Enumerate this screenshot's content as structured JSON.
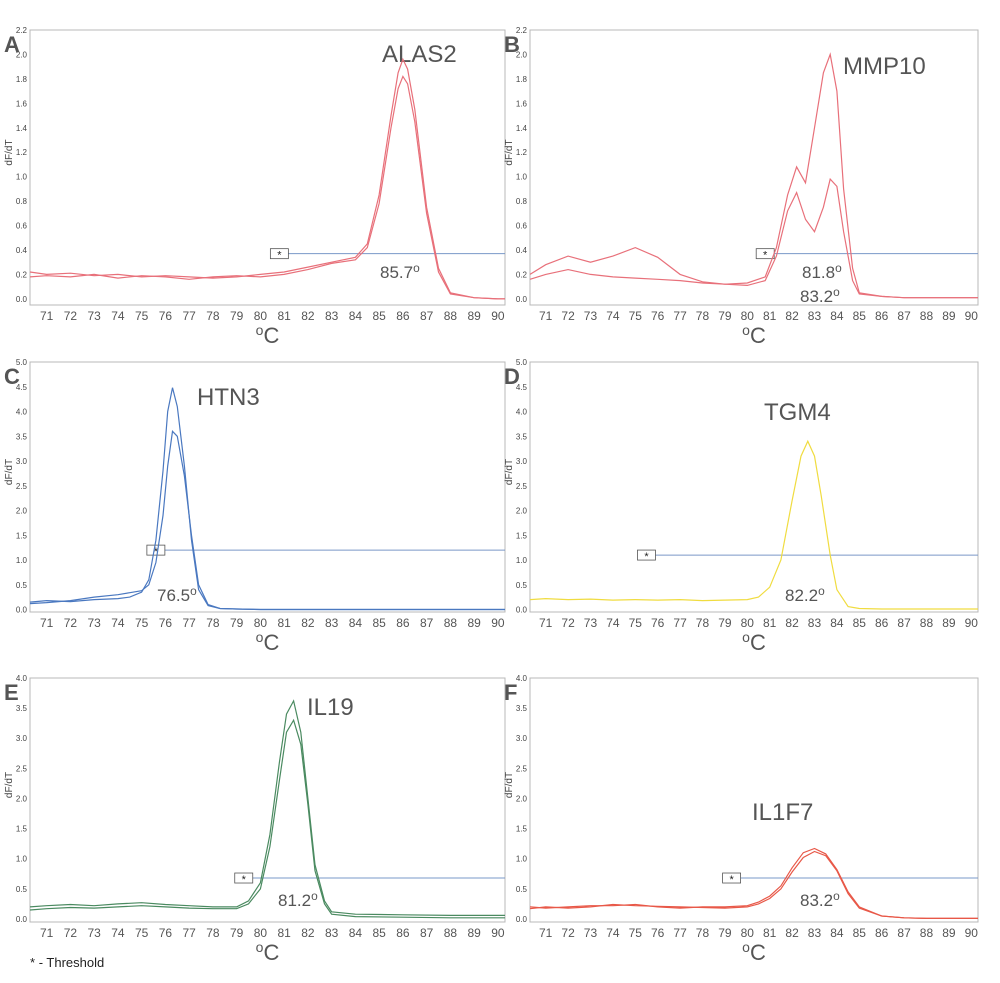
{
  "threshold_marker": "*",
  "footnote": "- Threshold",
  "chart_data": [
    {
      "type": "line",
      "panel_letter": "A",
      "gene": "ALAS2",
      "xlabel": "oC",
      "ylabel": "dF/dT",
      "xlim": [
        70.3,
        90.3
      ],
      "ylim": [
        -0.05,
        2.2
      ],
      "xticks": [
        71,
        72,
        73,
        74,
        75,
        76,
        77,
        78,
        79,
        80,
        81,
        82,
        83,
        84,
        85,
        86,
        87,
        88,
        89,
        90
      ],
      "yticks": [
        "0.0",
        "0.2",
        "0.4",
        "0.6",
        "0.8",
        "1.0",
        "1.2",
        "1.4",
        "1.6",
        "1.8",
        "2.0",
        "2.2"
      ],
      "color": "#e8707a",
      "threshold": 0.37,
      "marker_x": 80.8,
      "annotations": [
        "85.7o"
      ],
      "series": [
        {
          "x": [
            70.3,
            71,
            72,
            73,
            74,
            75,
            76,
            77,
            78,
            79,
            80,
            81,
            82,
            83,
            84,
            84.5,
            85,
            85.5,
            85.8,
            86,
            86.2,
            86.5,
            87,
            87.5,
            88,
            89,
            90,
            90.3
          ],
          "y": [
            0.22,
            0.2,
            0.21,
            0.19,
            0.2,
            0.18,
            0.19,
            0.18,
            0.17,
            0.18,
            0.2,
            0.22,
            0.26,
            0.3,
            0.34,
            0.45,
            0.85,
            1.5,
            1.85,
            1.96,
            1.88,
            1.55,
            0.75,
            0.25,
            0.05,
            0.01,
            0.0,
            0.0
          ]
        },
        {
          "x": [
            70.3,
            71,
            72,
            73,
            74,
            75,
            76,
            77,
            78,
            79,
            80,
            81,
            82,
            83,
            84,
            84.5,
            85,
            85.5,
            85.8,
            86,
            86.2,
            86.5,
            87,
            87.5,
            88,
            89,
            90,
            90.3
          ],
          "y": [
            0.18,
            0.19,
            0.18,
            0.2,
            0.17,
            0.19,
            0.18,
            0.16,
            0.18,
            0.19,
            0.18,
            0.2,
            0.24,
            0.29,
            0.32,
            0.42,
            0.78,
            1.4,
            1.72,
            1.82,
            1.76,
            1.45,
            0.7,
            0.22,
            0.04,
            0.01,
            0.0,
            0.0
          ]
        }
      ]
    },
    {
      "type": "line",
      "panel_letter": "B",
      "gene": "MMP10",
      "xlabel": "oC",
      "ylabel": "dF/dT",
      "xlim": [
        70.3,
        90.3
      ],
      "ylim": [
        -0.05,
        2.2
      ],
      "xticks": [
        71,
        72,
        73,
        74,
        75,
        76,
        77,
        78,
        79,
        80,
        81,
        82,
        83,
        84,
        85,
        86,
        87,
        88,
        89,
        90
      ],
      "yticks": [
        "0.0",
        "0.2",
        "0.4",
        "0.6",
        "0.8",
        "1.0",
        "1.2",
        "1.4",
        "1.6",
        "1.8",
        "2.0",
        "2.2"
      ],
      "color": "#e8707a",
      "threshold": 0.37,
      "marker_x": 80.8,
      "annotations": [
        "81.8o",
        "83.2o"
      ],
      "series": [
        {
          "x": [
            70.3,
            71,
            72,
            73,
            74,
            75,
            76,
            77,
            78,
            79,
            80,
            80.8,
            81.3,
            81.8,
            82.2,
            82.6,
            83,
            83.4,
            83.7,
            84,
            84.3,
            84.7,
            85,
            86,
            87,
            88,
            89,
            90,
            90.3
          ],
          "y": [
            0.2,
            0.28,
            0.35,
            0.3,
            0.35,
            0.42,
            0.34,
            0.2,
            0.14,
            0.12,
            0.13,
            0.18,
            0.42,
            0.85,
            1.08,
            0.95,
            1.4,
            1.85,
            2.0,
            1.7,
            0.9,
            0.25,
            0.05,
            0.02,
            0.01,
            0.01,
            0.01,
            0.01,
            0.01
          ]
        },
        {
          "x": [
            70.3,
            71,
            72,
            73,
            74,
            75,
            76,
            77,
            78,
            79,
            80,
            80.8,
            81.3,
            81.8,
            82.2,
            82.6,
            83,
            83.4,
            83.7,
            84,
            84.3,
            84.7,
            85,
            86,
            87,
            88,
            89,
            90,
            90.3
          ],
          "y": [
            0.16,
            0.2,
            0.24,
            0.2,
            0.18,
            0.17,
            0.16,
            0.15,
            0.13,
            0.12,
            0.11,
            0.15,
            0.35,
            0.72,
            0.87,
            0.65,
            0.55,
            0.75,
            0.98,
            0.92,
            0.55,
            0.15,
            0.04,
            0.02,
            0.01,
            0.01,
            0.01,
            0.01,
            0.01
          ]
        }
      ]
    },
    {
      "type": "line",
      "panel_letter": "C",
      "gene": "HTN3",
      "xlabel": "oC",
      "ylabel": "dF/dT",
      "xlim": [
        70.3,
        90.3
      ],
      "ylim": [
        -0.05,
        5.0
      ],
      "xticks": [
        71,
        72,
        73,
        74,
        75,
        76,
        77,
        78,
        79,
        80,
        81,
        82,
        83,
        84,
        85,
        86,
        87,
        88,
        89,
        90
      ],
      "yticks": [
        "0.0",
        "0.5",
        "1.0",
        "1.5",
        "2.0",
        "2.5",
        "3.0",
        "3.5",
        "4.0",
        "4.5",
        "5.0"
      ],
      "color": "#4a78c0",
      "threshold": 1.2,
      "marker_x": 75.6,
      "annotations": [
        "76.5o"
      ],
      "series": [
        {
          "x": [
            70.3,
            71,
            72,
            73,
            74,
            74.5,
            75,
            75.3,
            75.6,
            75.9,
            76.1,
            76.3,
            76.5,
            76.8,
            77.1,
            77.4,
            77.8,
            78.3,
            79,
            80,
            82,
            85,
            88,
            90,
            90.3
          ],
          "y": [
            0.15,
            0.18,
            0.16,
            0.2,
            0.22,
            0.25,
            0.35,
            0.6,
            1.4,
            2.8,
            4.0,
            4.48,
            4.1,
            2.9,
            1.4,
            0.4,
            0.08,
            0.02,
            0.01,
            0.0,
            0.0,
            0.0,
            0.0,
            0.0,
            0.0
          ]
        },
        {
          "x": [
            70.3,
            71,
            72,
            73,
            74,
            74.5,
            75,
            75.3,
            75.6,
            75.9,
            76.1,
            76.3,
            76.5,
            76.8,
            77.1,
            77.4,
            77.8,
            78.3,
            79,
            80,
            82,
            85,
            88,
            90,
            90.3
          ],
          "y": [
            0.12,
            0.14,
            0.18,
            0.25,
            0.3,
            0.34,
            0.38,
            0.5,
            0.95,
            1.9,
            2.9,
            3.6,
            3.5,
            2.7,
            1.5,
            0.5,
            0.1,
            0.02,
            0.01,
            0.0,
            0.0,
            0.0,
            0.0,
            0.0,
            0.0
          ]
        }
      ]
    },
    {
      "type": "line",
      "panel_letter": "D",
      "gene": "TGM4",
      "xlabel": "oC",
      "ylabel": "dF/dT",
      "xlim": [
        70.3,
        90.3
      ],
      "ylim": [
        -0.05,
        5.0
      ],
      "xticks": [
        71,
        72,
        73,
        74,
        75,
        76,
        77,
        78,
        79,
        80,
        81,
        82,
        83,
        84,
        85,
        86,
        87,
        88,
        89,
        90
      ],
      "yticks": [
        "0.0",
        "0.5",
        "1.0",
        "1.5",
        "2.0",
        "2.5",
        "3.0",
        "3.5",
        "4.0",
        "4.5",
        "5.0"
      ],
      "color": "#f0dc40",
      "threshold": 1.1,
      "marker_x": 75.5,
      "annotations": [
        "82.2o"
      ],
      "series": [
        {
          "x": [
            70.3,
            71,
            72,
            73,
            74,
            75,
            76,
            77,
            78,
            79,
            80,
            80.5,
            81,
            81.5,
            82,
            82.4,
            82.7,
            83,
            83.3,
            83.7,
            84,
            84.5,
            85,
            86,
            88,
            90,
            90.3
          ],
          "y": [
            0.2,
            0.22,
            0.2,
            0.21,
            0.19,
            0.2,
            0.19,
            0.2,
            0.18,
            0.19,
            0.2,
            0.25,
            0.45,
            1.0,
            2.2,
            3.1,
            3.4,
            3.1,
            2.3,
            1.1,
            0.4,
            0.06,
            0.02,
            0.01,
            0.01,
            0.01,
            0.01
          ]
        }
      ]
    },
    {
      "type": "line",
      "panel_letter": "E",
      "gene": "IL19",
      "xlabel": "oC",
      "ylabel": "dF/dT",
      "xlim": [
        70.3,
        90.3
      ],
      "ylim": [
        -0.05,
        4.0
      ],
      "xticks": [
        71,
        72,
        73,
        74,
        75,
        76,
        77,
        78,
        79,
        80,
        81,
        82,
        83,
        84,
        85,
        86,
        87,
        88,
        89,
        90
      ],
      "yticks": [
        "0.0",
        "0.5",
        "1.0",
        "1.5",
        "2.0",
        "2.5",
        "3.0",
        "3.5",
        "4.0"
      ],
      "color": "#4a8a60",
      "threshold": 0.68,
      "marker_x": 79.3,
      "annotations": [
        "81.2o"
      ],
      "series": [
        {
          "x": [
            70.3,
            71,
            72,
            73,
            74,
            75,
            76,
            77,
            78,
            79,
            79.5,
            80,
            80.4,
            80.8,
            81.1,
            81.4,
            81.7,
            82,
            82.3,
            82.7,
            83,
            84,
            86,
            88,
            90,
            90.3
          ],
          "y": [
            0.2,
            0.22,
            0.24,
            0.22,
            0.25,
            0.27,
            0.24,
            0.22,
            0.2,
            0.2,
            0.3,
            0.6,
            1.4,
            2.6,
            3.4,
            3.62,
            3.1,
            2.0,
            0.9,
            0.3,
            0.12,
            0.08,
            0.07,
            0.06,
            0.06,
            0.06
          ]
        },
        {
          "x": [
            70.3,
            71,
            72,
            73,
            74,
            75,
            76,
            77,
            78,
            79,
            79.5,
            80,
            80.4,
            80.8,
            81.1,
            81.4,
            81.7,
            82,
            82.3,
            82.7,
            83,
            84,
            86,
            88,
            90,
            90.3
          ],
          "y": [
            0.15,
            0.17,
            0.19,
            0.18,
            0.2,
            0.22,
            0.2,
            0.18,
            0.17,
            0.17,
            0.25,
            0.5,
            1.2,
            2.3,
            3.1,
            3.3,
            2.9,
            1.9,
            0.8,
            0.25,
            0.08,
            0.04,
            0.03,
            0.02,
            0.02,
            0.02
          ]
        }
      ]
    },
    {
      "type": "line",
      "panel_letter": "F",
      "gene": "IL1F7",
      "xlabel": "oC",
      "ylabel": "dF/dT",
      "xlim": [
        70.3,
        90.3
      ],
      "ylim": [
        -0.05,
        4.0
      ],
      "xticks": [
        71,
        72,
        73,
        74,
        75,
        76,
        77,
        78,
        79,
        80,
        81,
        82,
        83,
        84,
        85,
        86,
        87,
        88,
        89,
        90
      ],
      "yticks": [
        "0.0",
        "0.5",
        "1.0",
        "1.5",
        "2.0",
        "2.5",
        "3.0",
        "3.5",
        "4.0"
      ],
      "color": "#e85848",
      "threshold": 0.68,
      "marker_x": 79.3,
      "annotations": [
        "83.2o"
      ],
      "series": [
        {
          "x": [
            70.3,
            71,
            72,
            73,
            74,
            75,
            76,
            77,
            78,
            79,
            80,
            80.5,
            81,
            81.5,
            82,
            82.5,
            83,
            83.5,
            84,
            84.5,
            85,
            86,
            87,
            88,
            89,
            90,
            90.3
          ],
          "y": [
            0.2,
            0.18,
            0.2,
            0.22,
            0.22,
            0.24,
            0.2,
            0.18,
            0.2,
            0.2,
            0.22,
            0.28,
            0.38,
            0.55,
            0.85,
            1.1,
            1.17,
            1.08,
            0.82,
            0.45,
            0.2,
            0.05,
            0.02,
            0.01,
            0.01,
            0.01,
            0.01
          ]
        },
        {
          "x": [
            70.3,
            71,
            72,
            73,
            74,
            75,
            76,
            77,
            78,
            79,
            80,
            80.5,
            81,
            81.5,
            82,
            82.5,
            83,
            83.5,
            84,
            84.5,
            85,
            86,
            87,
            88,
            89,
            90,
            90.3
          ],
          "y": [
            0.17,
            0.2,
            0.18,
            0.2,
            0.24,
            0.22,
            0.21,
            0.2,
            0.19,
            0.18,
            0.2,
            0.25,
            0.34,
            0.5,
            0.78,
            1.02,
            1.12,
            1.05,
            0.8,
            0.42,
            0.18,
            0.05,
            0.02,
            0.01,
            0.01,
            0.01,
            0.01
          ]
        }
      ]
    }
  ]
}
